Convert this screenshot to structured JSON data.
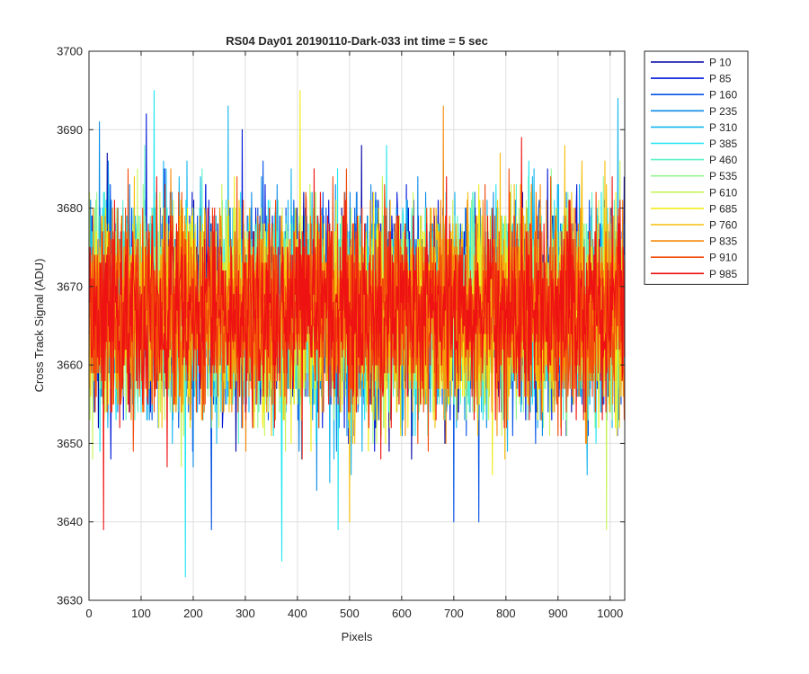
{
  "chart_data": {
    "type": "line",
    "title": "RS04 Day01 20190110-Dark-033 int time = 5 sec",
    "xlabel": "Pixels",
    "ylabel": "Cross Track Signal (ADU)",
    "xlim": [
      0,
      1028
    ],
    "ylim": [
      3630,
      3700
    ],
    "xticks": [
      0,
      100,
      200,
      300,
      400,
      500,
      600,
      700,
      800,
      900,
      1000
    ],
    "yticks": [
      3630,
      3640,
      3650,
      3660,
      3670,
      3680,
      3690,
      3700
    ],
    "grid": true,
    "legend_position": "outside-top-right",
    "n_points_per_series": 1028,
    "series_summary": {
      "center": 3667,
      "typical_min": 3650,
      "typical_max": 3684
    },
    "series": [
      {
        "name": "P 10",
        "color": "#0000a6"
      },
      {
        "name": "P 85",
        "color": "#0016d9"
      },
      {
        "name": "P 160",
        "color": "#0050e6"
      },
      {
        "name": "P 235",
        "color": "#0a8ae6"
      },
      {
        "name": "P 310",
        "color": "#12b5ef"
      },
      {
        "name": "P 385",
        "color": "#1ee6f0"
      },
      {
        "name": "P 460",
        "color": "#5ef2c8"
      },
      {
        "name": "P 535",
        "color": "#96f596"
      },
      {
        "name": "P 610",
        "color": "#c8f55a"
      },
      {
        "name": "P 685",
        "color": "#f2ec18"
      },
      {
        "name": "P 760",
        "color": "#f7be0a"
      },
      {
        "name": "P 835",
        "color": "#f58a0a"
      },
      {
        "name": "P 910",
        "color": "#f24a0a"
      },
      {
        "name": "P 985",
        "color": "#ee1212"
      }
    ],
    "extremes": [
      {
        "series": "P 985",
        "x": 28,
        "y": 3639
      },
      {
        "series": "P 385",
        "x": 185,
        "y": 3633
      },
      {
        "series": "P 160",
        "x": 235,
        "y": 3639
      },
      {
        "series": "P 385",
        "x": 370,
        "y": 3635
      },
      {
        "series": "P 385",
        "x": 478,
        "y": 3639
      },
      {
        "series": "P 760",
        "x": 500,
        "y": 3640
      },
      {
        "series": "P 160",
        "x": 700,
        "y": 3640
      },
      {
        "series": "P 160",
        "x": 748,
        "y": 3640
      },
      {
        "series": "P 610",
        "x": 993,
        "y": 3639
      },
      {
        "series": "P 385",
        "x": 125,
        "y": 3695
      },
      {
        "series": "P 685",
        "x": 405,
        "y": 3695
      },
      {
        "series": "P 310",
        "x": 1015,
        "y": 3694
      },
      {
        "series": "P 835",
        "x": 680,
        "y": 3693
      },
      {
        "series": "P 85",
        "x": 110,
        "y": 3692
      },
      {
        "series": "P 235",
        "x": 20,
        "y": 3691
      }
    ]
  }
}
